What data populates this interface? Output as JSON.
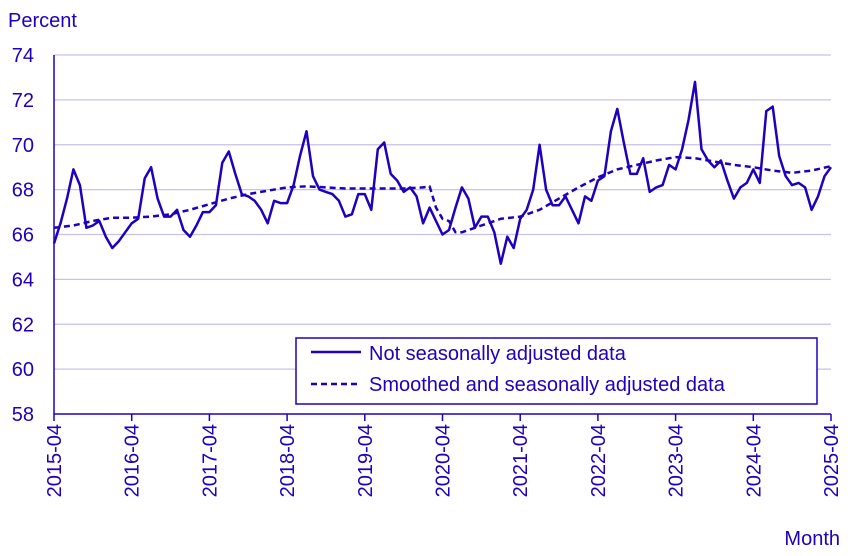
{
  "chart_data": {
    "type": "line",
    "title": "",
    "ylabel": "Percent",
    "xlabel": "Month",
    "ylim": [
      58,
      74
    ],
    "yticks": [
      58,
      60,
      62,
      64,
      66,
      68,
      70,
      72,
      74
    ],
    "xlim": [
      "2015-04",
      "2025-04"
    ],
    "xticks": [
      "2015-04",
      "2016-04",
      "2017-04",
      "2018-04",
      "2019-04",
      "2020-04",
      "2021-04",
      "2022-04",
      "2023-04",
      "2024-04",
      "2025-04"
    ],
    "grid": "horizontal",
    "legend_position": "bottom-right",
    "colors": {
      "line": "#1e00be",
      "grid": "#c6c3ec",
      "text": "#1e00be"
    },
    "series": [
      {
        "name": "Not seasonally adjusted data",
        "style": "solid",
        "x": [
          "2015-04",
          "2015-05",
          "2015-06",
          "2015-07",
          "2015-08",
          "2015-09",
          "2015-10",
          "2015-11",
          "2015-12",
          "2016-01",
          "2016-02",
          "2016-03",
          "2016-04",
          "2016-05",
          "2016-06",
          "2016-07",
          "2016-08",
          "2016-09",
          "2016-10",
          "2016-11",
          "2016-12",
          "2017-01",
          "2017-02",
          "2017-03",
          "2017-04",
          "2017-05",
          "2017-06",
          "2017-07",
          "2017-08",
          "2017-09",
          "2017-10",
          "2017-11",
          "2017-12",
          "2018-01",
          "2018-02",
          "2018-03",
          "2018-04",
          "2018-05",
          "2018-06",
          "2018-07",
          "2018-08",
          "2018-09",
          "2018-10",
          "2018-11",
          "2018-12",
          "2019-01",
          "2019-02",
          "2019-03",
          "2019-04",
          "2019-05",
          "2019-06",
          "2019-07",
          "2019-08",
          "2019-09",
          "2019-10",
          "2019-11",
          "2019-12",
          "2020-01",
          "2020-02",
          "2020-03",
          "2020-04",
          "2020-05",
          "2020-06",
          "2020-07",
          "2020-08",
          "2020-09",
          "2020-10",
          "2020-11",
          "2020-12",
          "2021-01",
          "2021-02",
          "2021-03",
          "2021-04",
          "2021-05",
          "2021-06",
          "2021-07",
          "2021-08",
          "2021-09",
          "2021-10",
          "2021-11",
          "2021-12",
          "2022-01",
          "2022-02",
          "2022-03",
          "2022-04",
          "2022-05",
          "2022-06",
          "2022-07",
          "2022-08",
          "2022-09",
          "2022-10",
          "2022-11",
          "2022-12",
          "2023-01",
          "2023-02",
          "2023-03",
          "2023-04",
          "2023-05",
          "2023-06",
          "2023-07",
          "2023-08",
          "2023-09",
          "2023-10",
          "2023-11",
          "2023-12",
          "2024-01",
          "2024-02",
          "2024-03",
          "2024-04",
          "2024-05",
          "2024-06",
          "2024-07",
          "2024-08",
          "2024-09",
          "2024-10",
          "2024-11",
          "2024-12",
          "2025-01",
          "2025-02",
          "2025-03",
          "2025-04"
        ],
        "values": [
          65.6,
          66.5,
          67.6,
          68.9,
          68.2,
          66.3,
          66.4,
          66.6,
          65.9,
          65.4,
          65.7,
          66.1,
          66.5,
          66.7,
          68.5,
          69.0,
          67.6,
          66.8,
          66.8,
          67.1,
          66.2,
          65.9,
          66.4,
          67.0,
          67.0,
          67.3,
          69.2,
          69.7,
          68.7,
          67.8,
          67.7,
          67.5,
          67.1,
          66.5,
          67.5,
          67.4,
          67.4,
          68.2,
          69.5,
          70.6,
          68.6,
          68.0,
          67.9,
          67.8,
          67.5,
          66.8,
          66.9,
          67.8,
          67.8,
          67.1,
          69.8,
          70.1,
          68.7,
          68.4,
          67.9,
          68.1,
          67.7,
          66.5,
          67.2,
          66.6,
          66.0,
          66.2,
          67.2,
          68.1,
          67.6,
          66.3,
          66.8,
          66.8,
          66.1,
          64.7,
          65.9,
          65.4,
          66.7,
          67.1,
          68.0,
          70.0,
          68.0,
          67.3,
          67.3,
          67.7,
          67.1,
          66.5,
          67.7,
          67.5,
          68.4,
          68.6,
          70.6,
          71.6,
          70.1,
          68.7,
          68.7,
          69.4,
          67.9,
          68.1,
          68.2,
          69.1,
          68.9,
          69.8,
          71.1,
          72.8,
          69.8,
          69.3,
          69.0,
          69.3,
          68.4,
          67.6,
          68.1,
          68.3,
          68.9,
          68.3,
          71.5,
          71.7,
          69.5,
          68.6,
          68.2,
          68.3,
          68.1,
          67.1,
          67.7,
          68.6,
          69.0
        ]
      },
      {
        "name": "Smoothed and seasonally adjusted data",
        "style": "dashed",
        "x": [
          "2015-04",
          "2015-07",
          "2015-10",
          "2016-01",
          "2016-04",
          "2016-07",
          "2016-10",
          "2017-01",
          "2017-04",
          "2017-07",
          "2017-10",
          "2018-01",
          "2018-04",
          "2018-07",
          "2018-10",
          "2019-01",
          "2019-04",
          "2019-07",
          "2019-10",
          "2020-01",
          "2020-02",
          "2020-03",
          "2020-04",
          "2020-05",
          "2020-06",
          "2020-07",
          "2020-10",
          "2021-01",
          "2021-04",
          "2021-07",
          "2021-10",
          "2022-01",
          "2022-04",
          "2022-07",
          "2022-10",
          "2023-01",
          "2023-04",
          "2023-07",
          "2023-10",
          "2024-01",
          "2024-04",
          "2024-07",
          "2024-10",
          "2025-01",
          "2025-04"
        ],
        "values": [
          66.3,
          66.4,
          66.6,
          66.75,
          66.75,
          66.8,
          66.9,
          67.1,
          67.35,
          67.6,
          67.8,
          67.95,
          68.1,
          68.15,
          68.1,
          68.05,
          68.05,
          68.05,
          68.05,
          68.1,
          68.15,
          67.2,
          66.7,
          66.6,
          66.1,
          66.1,
          66.4,
          66.7,
          66.8,
          67.1,
          67.6,
          68.1,
          68.55,
          68.9,
          69.1,
          69.3,
          69.45,
          69.4,
          69.25,
          69.1,
          69.0,
          68.85,
          68.75,
          68.85,
          69.05
        ]
      }
    ]
  }
}
